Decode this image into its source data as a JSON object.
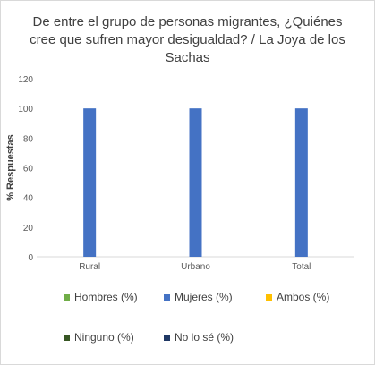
{
  "chart_data": {
    "type": "bar",
    "title": "De entre el grupo de personas migrantes, ¿Quiénes cree que sufren mayor desigualdad? / La Joya de los Sachas",
    "ylabel": "% Respuestas",
    "xlabel": "",
    "ylim": [
      0,
      120
    ],
    "yticks": [
      0,
      20,
      40,
      60,
      80,
      100,
      120
    ],
    "grid": false,
    "legend_position": "bottom",
    "categories": [
      "Rural",
      "Urbano",
      "Total"
    ],
    "series": [
      {
        "name": "Hombres (%)",
        "color": "#70ad47",
        "values": [
          0,
          0,
          0
        ]
      },
      {
        "name": "Mujeres (%)",
        "color": "#4472c4",
        "values": [
          100,
          100,
          100
        ]
      },
      {
        "name": "Ambos (%)",
        "color": "#ffc000",
        "values": [
          0,
          0,
          0
        ]
      },
      {
        "name": "Ninguno (%)",
        "color": "#375623",
        "values": [
          0,
          0,
          0
        ]
      },
      {
        "name": "No lo sé (%)",
        "color": "#1f3864",
        "values": [
          0,
          0,
          0
        ]
      }
    ]
  }
}
